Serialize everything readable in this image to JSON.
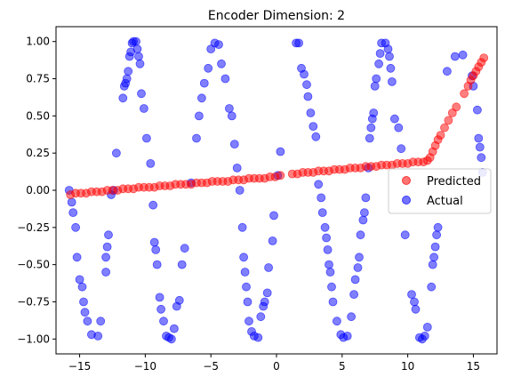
{
  "chart_data": {
    "type": "scatter",
    "title": "Encoder Dimension: 2",
    "xlabel": "",
    "ylabel": "",
    "xlim": [
      -16.8,
      16.8
    ],
    "ylim": [
      -1.1,
      1.1
    ],
    "x_ticks": [
      -15,
      -10,
      -5,
      0,
      5,
      10,
      15
    ],
    "y_ticks": [
      -1.0,
      -0.75,
      -0.5,
      -0.25,
      0.0,
      0.25,
      0.5,
      0.75,
      1.0
    ],
    "grid": false,
    "legend": {
      "position": "center-right",
      "entries": [
        "Predicted",
        "Actual"
      ]
    },
    "series": [
      {
        "name": "Predicted",
        "color": "#ff0000",
        "points": [
          [
            -15.7,
            -0.03
          ],
          [
            -15.3,
            -0.02
          ],
          [
            -14.9,
            -0.02
          ],
          [
            -14.5,
            -0.02
          ],
          [
            -14.1,
            -0.01
          ],
          [
            -13.7,
            -0.01
          ],
          [
            -13.3,
            -0.01
          ],
          [
            -12.9,
            0.0
          ],
          [
            -12.5,
            0.0
          ],
          [
            -12.1,
            0.0
          ],
          [
            -11.7,
            0.01
          ],
          [
            -11.3,
            0.01
          ],
          [
            -10.9,
            0.01
          ],
          [
            -10.5,
            0.02
          ],
          [
            -10.1,
            0.02
          ],
          [
            -9.7,
            0.02
          ],
          [
            -9.3,
            0.02
          ],
          [
            -8.9,
            0.03
          ],
          [
            -8.5,
            0.03
          ],
          [
            -8.1,
            0.03
          ],
          [
            -7.7,
            0.04
          ],
          [
            -7.3,
            0.04
          ],
          [
            -6.9,
            0.04
          ],
          [
            -6.5,
            0.04
          ],
          [
            -6.1,
            0.05
          ],
          [
            -5.7,
            0.05
          ],
          [
            -5.3,
            0.05
          ],
          [
            -4.9,
            0.06
          ],
          [
            -4.5,
            0.06
          ],
          [
            -4.1,
            0.06
          ],
          [
            -3.7,
            0.06
          ],
          [
            -3.3,
            0.07
          ],
          [
            -2.9,
            0.07
          ],
          [
            -2.5,
            0.07
          ],
          [
            -2.1,
            0.08
          ],
          [
            -1.7,
            0.08
          ],
          [
            -1.3,
            0.08
          ],
          [
            -0.9,
            0.08
          ],
          [
            -0.5,
            0.09
          ],
          [
            -0.1,
            0.09
          ],
          [
            0.3,
            0.1
          ],
          [
            1.2,
            0.11
          ],
          [
            1.6,
            0.11
          ],
          [
            2.0,
            0.12
          ],
          [
            2.4,
            0.12
          ],
          [
            2.8,
            0.12
          ],
          [
            3.2,
            0.13
          ],
          [
            3.6,
            0.13
          ],
          [
            4.0,
            0.13
          ],
          [
            4.4,
            0.14
          ],
          [
            4.8,
            0.14
          ],
          [
            5.2,
            0.14
          ],
          [
            5.6,
            0.15
          ],
          [
            6.0,
            0.15
          ],
          [
            6.4,
            0.15
          ],
          [
            6.8,
            0.16
          ],
          [
            7.2,
            0.16
          ],
          [
            7.6,
            0.16
          ],
          [
            8.0,
            0.17
          ],
          [
            8.4,
            0.17
          ],
          [
            8.8,
            0.17
          ],
          [
            9.2,
            0.18
          ],
          [
            9.6,
            0.18
          ],
          [
            10.0,
            0.18
          ],
          [
            10.4,
            0.19
          ],
          [
            10.8,
            0.19
          ],
          [
            11.2,
            0.19
          ],
          [
            11.5,
            0.2
          ],
          [
            11.7,
            0.22
          ],
          [
            11.9,
            0.26
          ],
          [
            12.1,
            0.3
          ],
          [
            12.3,
            0.34
          ],
          [
            12.5,
            0.37
          ],
          [
            12.8,
            0.42
          ],
          [
            13.1,
            0.47
          ],
          [
            13.4,
            0.52
          ],
          [
            13.7,
            0.56
          ],
          [
            14.3,
            0.65
          ],
          [
            14.6,
            0.7
          ],
          [
            14.8,
            0.74
          ],
          [
            15.0,
            0.77
          ],
          [
            15.2,
            0.8
          ],
          [
            15.4,
            0.83
          ],
          [
            15.6,
            0.86
          ],
          [
            15.8,
            0.89
          ]
        ]
      },
      {
        "name": "Actual",
        "color": "#0000ff",
        "points": [
          [
            -15.8,
            0.0
          ],
          [
            -15.6,
            -0.08
          ],
          [
            -15.5,
            -0.15
          ],
          [
            -15.3,
            -0.25
          ],
          [
            -15.2,
            -0.45
          ],
          [
            -15.0,
            -0.6
          ],
          [
            -14.8,
            -0.65
          ],
          [
            -14.7,
            -0.75
          ],
          [
            -14.6,
            -0.82
          ],
          [
            -14.4,
            -0.88
          ],
          [
            -14.1,
            -0.97
          ],
          [
            -13.6,
            -0.98
          ],
          [
            -13.4,
            -0.88
          ],
          [
            -13.0,
            -0.55
          ],
          [
            -13.0,
            -0.45
          ],
          [
            -12.9,
            -0.38
          ],
          [
            -12.8,
            -0.3
          ],
          [
            -12.6,
            -0.03
          ],
          [
            -12.4,
            0.0
          ],
          [
            -12.2,
            0.25
          ],
          [
            -11.7,
            0.62
          ],
          [
            -11.6,
            0.7
          ],
          [
            -11.5,
            0.72
          ],
          [
            -11.4,
            0.75
          ],
          [
            -11.3,
            0.8
          ],
          [
            -11.2,
            0.9
          ],
          [
            -11.1,
            0.93
          ],
          [
            -11.0,
            0.99
          ],
          [
            -10.9,
            1.0
          ],
          [
            -10.7,
            1.0
          ],
          [
            -10.6,
            0.95
          ],
          [
            -10.5,
            0.9
          ],
          [
            -10.4,
            0.85
          ],
          [
            -10.3,
            0.65
          ],
          [
            -10.1,
            0.55
          ],
          [
            -9.9,
            0.35
          ],
          [
            -9.6,
            0.18
          ],
          [
            -9.4,
            -0.1
          ],
          [
            -9.3,
            -0.35
          ],
          [
            -9.2,
            -0.4
          ],
          [
            -9.1,
            -0.5
          ],
          [
            -8.9,
            -0.72
          ],
          [
            -8.8,
            -0.8
          ],
          [
            -8.6,
            -0.88
          ],
          [
            -8.4,
            -0.98
          ],
          [
            -8.2,
            -0.99
          ],
          [
            -8.0,
            -1.0
          ],
          [
            -7.8,
            -0.93
          ],
          [
            -7.6,
            -0.78
          ],
          [
            -7.4,
            -0.74
          ],
          [
            -7.2,
            -0.5
          ],
          [
            -7.0,
            -0.39
          ],
          [
            -6.5,
            0.05
          ],
          [
            -6.1,
            0.35
          ],
          [
            -5.9,
            0.5
          ],
          [
            -5.7,
            0.62
          ],
          [
            -5.5,
            0.72
          ],
          [
            -5.2,
            0.82
          ],
          [
            -5.0,
            0.95
          ],
          [
            -4.7,
            0.99
          ],
          [
            -4.4,
            0.98
          ],
          [
            -4.2,
            0.85
          ],
          [
            -3.9,
            0.75
          ],
          [
            -3.6,
            0.55
          ],
          [
            -3.4,
            0.5
          ],
          [
            -3.2,
            0.31
          ],
          [
            -3.0,
            0.15
          ],
          [
            -2.8,
            0.0
          ],
          [
            -2.6,
            -0.25
          ],
          [
            -2.5,
            -0.45
          ],
          [
            -2.4,
            -0.55
          ],
          [
            -2.3,
            -0.65
          ],
          [
            -2.2,
            -0.75
          ],
          [
            -2.1,
            -0.88
          ],
          [
            -1.9,
            -0.95
          ],
          [
            -1.7,
            -0.98
          ],
          [
            -1.4,
            -0.99
          ],
          [
            -1.2,
            -0.85
          ],
          [
            -1.0,
            -0.78
          ],
          [
            -0.9,
            -0.75
          ],
          [
            -0.7,
            -0.69
          ],
          [
            -0.6,
            -0.52
          ],
          [
            -0.3,
            -0.34
          ],
          [
            -0.2,
            -0.17
          ],
          [
            0.1,
            0.1
          ],
          [
            0.3,
            0.26
          ],
          [
            1.5,
            0.99
          ],
          [
            1.7,
            0.99
          ],
          [
            1.9,
            0.82
          ],
          [
            2.1,
            0.78
          ],
          [
            2.3,
            0.71
          ],
          [
            2.4,
            0.63
          ],
          [
            2.6,
            0.52
          ],
          [
            2.8,
            0.43
          ],
          [
            3.0,
            0.36
          ],
          [
            3.2,
            0.04
          ],
          [
            3.4,
            -0.05
          ],
          [
            3.5,
            -0.15
          ],
          [
            3.7,
            -0.25
          ],
          [
            3.8,
            -0.32
          ],
          [
            3.9,
            -0.4
          ],
          [
            4.0,
            -0.5
          ],
          [
            4.1,
            -0.55
          ],
          [
            4.2,
            -0.65
          ],
          [
            4.3,
            -0.75
          ],
          [
            4.6,
            -0.88
          ],
          [
            4.9,
            -0.97
          ],
          [
            5.1,
            -0.99
          ],
          [
            5.4,
            -0.98
          ],
          [
            5.7,
            -0.85
          ],
          [
            5.9,
            -0.7
          ],
          [
            6.0,
            -0.6
          ],
          [
            6.2,
            -0.52
          ],
          [
            6.3,
            -0.45
          ],
          [
            6.4,
            -0.3
          ],
          [
            6.6,
            -0.2
          ],
          [
            6.7,
            -0.15
          ],
          [
            6.8,
            -0.05
          ],
          [
            7.0,
            0.15
          ],
          [
            7.1,
            0.35
          ],
          [
            7.2,
            0.42
          ],
          [
            7.3,
            0.48
          ],
          [
            7.4,
            0.52
          ],
          [
            7.5,
            0.7
          ],
          [
            7.6,
            0.75
          ],
          [
            7.8,
            0.85
          ],
          [
            7.9,
            0.92
          ],
          [
            8.0,
            0.99
          ],
          [
            8.3,
            0.99
          ],
          [
            8.5,
            0.95
          ],
          [
            8.6,
            0.9
          ],
          [
            8.7,
            0.82
          ],
          [
            8.8,
            0.73
          ],
          [
            9.0,
            0.48
          ],
          [
            9.3,
            0.42
          ],
          [
            9.5,
            0.28
          ],
          [
            9.8,
            -0.3
          ],
          [
            10.3,
            -0.7
          ],
          [
            10.5,
            -0.75
          ],
          [
            10.6,
            -0.8
          ],
          [
            10.9,
            -0.99
          ],
          [
            11.1,
            -1.0
          ],
          [
            11.3,
            -0.98
          ],
          [
            11.5,
            -0.92
          ],
          [
            11.8,
            -0.65
          ],
          [
            11.9,
            -0.5
          ],
          [
            12.0,
            -0.45
          ],
          [
            12.1,
            -0.38
          ],
          [
            12.2,
            -0.3
          ],
          [
            12.3,
            -0.25
          ],
          [
            13.0,
            0.8
          ],
          [
            13.6,
            0.9
          ],
          [
            14.2,
            0.91
          ],
          [
            14.9,
            0.77
          ],
          [
            15.0,
            0.7
          ],
          [
            15.3,
            0.54
          ],
          [
            15.4,
            0.35
          ],
          [
            15.5,
            0.29
          ],
          [
            15.6,
            0.22
          ],
          [
            15.7,
            0.12
          ]
        ]
      }
    ]
  }
}
